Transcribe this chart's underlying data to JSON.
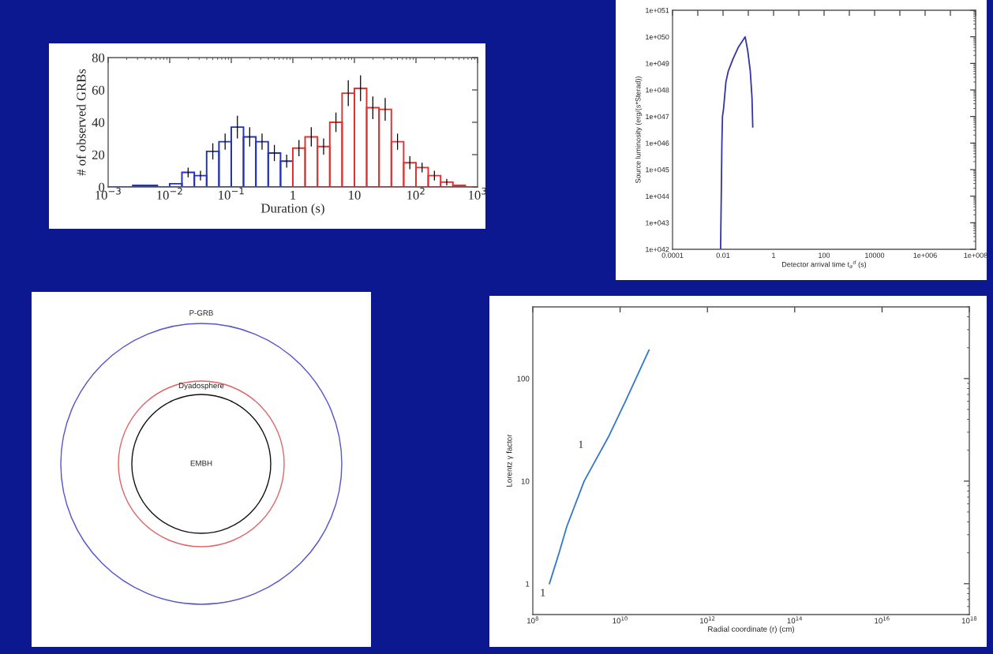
{
  "chart_data": [
    {
      "type": "histogram",
      "xlabel": "Duration (s)",
      "ylabel": "# of observed GRBs",
      "log": "x",
      "xlim": [
        0.001,
        1000
      ],
      "ylim": [
        0,
        80
      ],
      "xticks": [
        {
          "value": 0.001,
          "label": "10$^{−3}$"
        },
        {
          "value": 0.01,
          "label": "10$^{−2}$"
        },
        {
          "value": 0.1,
          "label": "10$^{−1}$"
        },
        {
          "value": 1,
          "label": "1"
        },
        {
          "value": 10,
          "label": "10"
        },
        {
          "value": 100,
          "label": "10$^{2}$"
        },
        {
          "value": 1000,
          "label": "10$^{3}$"
        }
      ],
      "yticks": [
        0,
        20,
        40,
        60,
        80
      ],
      "bins": [
        0.001,
        0.00158,
        0.00251,
        0.00398,
        0.00631,
        0.01,
        0.0158,
        0.0251,
        0.0398,
        0.0631,
        0.1,
        0.158,
        0.251,
        0.398,
        0.631,
        1,
        1.58,
        2.51,
        3.98,
        6.31,
        10,
        15.8,
        25.1,
        39.8,
        63.1,
        100,
        158,
        251,
        398,
        631,
        1000
      ],
      "values": [
        0,
        0,
        1,
        1,
        0,
        2,
        9,
        7,
        22,
        28,
        37,
        31,
        28,
        21,
        16,
        24,
        31,
        25,
        40,
        58,
        61,
        49,
        48,
        28,
        15,
        12,
        7,
        3,
        1,
        0
      ],
      "errors": [
        null,
        null,
        null,
        null,
        null,
        null,
        3,
        3,
        5,
        5,
        7,
        6,
        5,
        5,
        4,
        5,
        6,
        5,
        6,
        8,
        8,
        7,
        7,
        5,
        4,
        3,
        3,
        2,
        null,
        null
      ],
      "colors": [
        "#2233bb",
        "#2233bb",
        "#2233bb",
        "#2233bb",
        "#2233bb",
        "#2233bb",
        "#2233bb",
        "#2233bb",
        "#2233bb",
        "#2233bb",
        "#2233bb",
        "#2233bb",
        "#2233bb",
        "#2233bb",
        "#2233bb",
        "#dd3333",
        "#dd3333",
        "#dd3333",
        "#dd3333",
        "#dd3333",
        "#dd3333",
        "#dd3333",
        "#dd3333",
        "#dd3333",
        "#dd3333",
        "#dd3333",
        "#dd3333",
        "#dd3333",
        "#dd3333",
        "#dd3333"
      ]
    },
    {
      "type": "line",
      "xlabel": "Detector arrival time t$_{a}$$^{d}$ (s)",
      "ylabel": "Source luminosity (erg/(s*Sterad))",
      "log": "xy",
      "xlim": [
        0.0001,
        100000000
      ],
      "ylim": [
        1e+42,
        1e+51
      ],
      "xticks": [
        {
          "value": 0.0001,
          "label": "0.0001"
        },
        {
          "value": 0.001,
          "label": null
        },
        {
          "value": 0.01,
          "label": "0.01"
        },
        {
          "value": 0.1,
          "label": null
        },
        {
          "value": 1,
          "label": "1"
        },
        {
          "value": 10,
          "label": null
        },
        {
          "value": 100,
          "label": "100"
        },
        {
          "value": 1000,
          "label": null
        },
        {
          "value": 10000,
          "label": "10000"
        },
        {
          "value": 100000,
          "label": null
        },
        {
          "value": 1000000,
          "label": "1e+006"
        },
        {
          "value": 10000000,
          "label": null
        },
        {
          "value": 100000000,
          "label": "1e+008"
        }
      ],
      "yticks": [
        {
          "value": 1e+42,
          "label": "1e+042"
        },
        {
          "value": 1e+43,
          "label": "1e+043"
        },
        {
          "value": 1e+44,
          "label": "1e+044"
        },
        {
          "value": 1e+45,
          "label": "1e+045"
        },
        {
          "value": 1e+46,
          "label": "1e+046"
        },
        {
          "value": 1e+47,
          "label": "1e+047"
        },
        {
          "value": 1e+48,
          "label": "1e+048"
        },
        {
          "value": 1e+49,
          "label": "1e+049"
        },
        {
          "value": 1e+50,
          "label": "1e+050"
        },
        {
          "value": 1e+51,
          "label": "1e+051"
        }
      ],
      "series": [
        {
          "color": "#3333aa",
          "x": [
            0.008,
            0.0085,
            0.009,
            0.0095,
            0.0105,
            0.013,
            0.016,
            0.025,
            0.04,
            0.075,
            0.095,
            0.12,
            0.14,
            0.15
          ],
          "values": [
            1e+42,
            1e+44,
            1e+46,
            1e+47,
            2e+47,
            2e+48,
            5e+48,
            1.5e+49,
            4e+49,
            1e+50,
            3e+49,
            5e+48,
            5e+47,
            4e+46
          ]
        }
      ]
    },
    {
      "type": "other",
      "annotations": [
        "P-GRB",
        "Dyadosphere",
        "EMBH"
      ]
    },
    {
      "type": "line",
      "xlabel": "Radial coordinate (r) (cm)",
      "ylabel": "Lorentz γ factor",
      "log": "xy",
      "xlim": [
        100000000,
        1e+18
      ],
      "ylim": [
        0.5,
        500
      ],
      "xticks": [
        {
          "value": 100000000,
          "label": "10$^{8}$"
        },
        {
          "value": 10000000000,
          "label": "10$^{10}$"
        },
        {
          "value": 1000000000000,
          "label": "10$^{12}$"
        },
        {
          "value": 100000000000000,
          "label": "10$^{14}$"
        },
        {
          "value": 1e+16,
          "label": "10$^{16}$"
        },
        {
          "value": 1e+18,
          "label": "10$^{18}$"
        }
      ],
      "yticks": [
        1,
        10,
        100
      ],
      "annotations": [
        {
          "text": "1",
          "x": 240000000,
          "y": 1
        },
        "1"
      ],
      "series": [
        {
          "color": "#3377cc",
          "x": [
            240000000,
            400000000,
            600000000,
            1500000000,
            5400000000,
            13000000000,
            46000000000
          ],
          "values": [
            1,
            2,
            3.6,
            10,
            27,
            59,
            190
          ]
        }
      ]
    }
  ]
}
